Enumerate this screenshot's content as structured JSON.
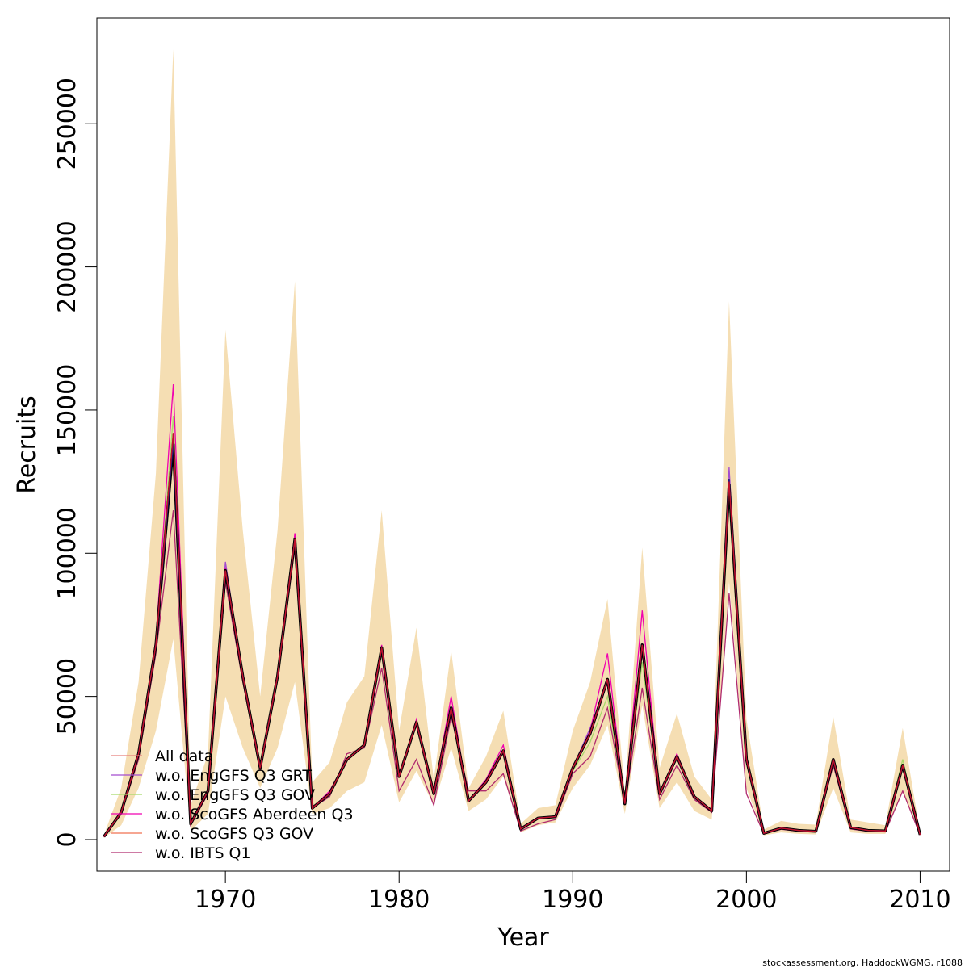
{
  "chart_data": {
    "type": "line",
    "xlabel": "Year",
    "ylabel": "Recruits",
    "xlim": [
      1962.6,
      2011.7
    ],
    "ylim": [
      -11000,
      287000
    ],
    "x_ticks": [
      1970,
      1980,
      1990,
      2000,
      2010
    ],
    "x_tick_labels": [
      "1970",
      "1980",
      "1990",
      "2000",
      "2010"
    ],
    "y_ticks": [
      0,
      50000,
      100000,
      150000,
      200000,
      250000
    ],
    "y_tick_labels": [
      "0",
      "50000",
      "100000",
      "150000",
      "200000",
      "250000"
    ],
    "legend_position": "bottom-left",
    "x": [
      1963,
      1964,
      1965,
      1966,
      1967,
      1968,
      1969,
      1970,
      1971,
      1972,
      1973,
      1974,
      1975,
      1976,
      1977,
      1978,
      1979,
      1980,
      1981,
      1982,
      1983,
      1984,
      1985,
      1986,
      1987,
      1988,
      1989,
      1990,
      1991,
      1992,
      1993,
      1994,
      1995,
      1996,
      1997,
      1998,
      1999,
      2000,
      2001,
      2002,
      2003,
      2004,
      2005,
      2006,
      2007,
      2008,
      2009,
      2010
    ],
    "band": {
      "color": "#f5deb3",
      "lower": [
        600,
        5000,
        18000,
        38000,
        70000,
        3000,
        9000,
        50000,
        32000,
        18000,
        32000,
        55000,
        9000,
        11000,
        17000,
        20000,
        40000,
        13000,
        24000,
        12000,
        32000,
        10000,
        14000,
        22000,
        2500,
        5000,
        6000,
        18000,
        26000,
        40000,
        9000,
        47000,
        11000,
        20000,
        10000,
        7000,
        90000,
        18000,
        1500,
        2500,
        2000,
        1800,
        18000,
        2500,
        2000,
        2000,
        17000,
        1000
      ],
      "upper": [
        1500,
        18000,
        55000,
        128000,
        276000,
        12000,
        30000,
        178000,
        108000,
        50000,
        108000,
        195000,
        20000,
        27000,
        48000,
        57000,
        115000,
        38000,
        74000,
        21000,
        66000,
        18000,
        29000,
        45000,
        5500,
        11000,
        12000,
        38000,
        55000,
        84000,
        17000,
        102000,
        25000,
        44000,
        22000,
        14000,
        188000,
        42000,
        3500,
        6500,
        5500,
        5200,
        43000,
        7000,
        6000,
        5000,
        39000,
        2400
      ]
    },
    "series": [
      {
        "name": "All data",
        "color": "#e8807d",
        "values": [
          1000,
          9500,
          30000,
          68000,
          142000,
          5500,
          17000,
          94000,
          57000,
          25000,
          57000,
          105000,
          11000,
          16000,
          28000,
          33000,
          67000,
          22000,
          41000,
          16000,
          46000,
          13500,
          20000,
          31000,
          3700,
          7500,
          8000,
          25000,
          37000,
          56000,
          12500,
          68000,
          16000,
          29000,
          15000,
          10000,
          126000,
          28000,
          2200,
          4000,
          3200,
          2900,
          28000,
          4200,
          3200,
          3000,
          26000,
          1700
        ]
      },
      {
        "name": "w.o. EngGFS Q3 GRT",
        "color": "#a34ccf",
        "values": [
          1000,
          9500,
          30000,
          68000,
          140000,
          5500,
          17000,
          97000,
          57000,
          25000,
          57000,
          106000,
          11000,
          16000,
          28000,
          33000,
          67000,
          22000,
          41000,
          16000,
          46000,
          13500,
          20000,
          31000,
          3700,
          7500,
          8000,
          25000,
          39000,
          56000,
          12500,
          68000,
          16000,
          29000,
          15000,
          10000,
          130000,
          28000,
          2200,
          4000,
          3200,
          2900,
          28000,
          4200,
          3200,
          3000,
          26000,
          1700
        ]
      },
      {
        "name": "w.o. EngGFS Q3 GOV",
        "color": "#a8d96a",
        "values": [
          1000,
          9500,
          30000,
          68000,
          148000,
          5500,
          17000,
          94000,
          57000,
          25000,
          57000,
          105000,
          11000,
          16000,
          28000,
          33000,
          67000,
          22000,
          41000,
          16000,
          46000,
          13500,
          20000,
          31000,
          3700,
          7500,
          8000,
          24000,
          34000,
          50000,
          12500,
          62000,
          16000,
          29000,
          15000,
          10000,
          122000,
          28000,
          2200,
          4000,
          3200,
          2900,
          27000,
          4200,
          3200,
          3000,
          28000,
          1700
        ]
      },
      {
        "name": "w.o. ScoGFS Aberdeen Q3",
        "color": "#f000b0",
        "values": [
          1000,
          9500,
          31000,
          70000,
          159000,
          5500,
          17000,
          95000,
          58000,
          25000,
          58000,
          107000,
          11000,
          17000,
          28000,
          33000,
          68000,
          22000,
          42000,
          16000,
          50000,
          13500,
          21000,
          33000,
          3700,
          7500,
          8000,
          25000,
          38000,
          65000,
          12500,
          80000,
          16000,
          30000,
          15000,
          10000,
          126000,
          28000,
          2200,
          4000,
          3200,
          2900,
          28000,
          4200,
          3200,
          3000,
          26000,
          1700
        ]
      },
      {
        "name": "w.o. ScoGFS Q3 GOV",
        "color": "#f07050",
        "values": [
          1000,
          9500,
          30000,
          68000,
          142000,
          5500,
          17000,
          94000,
          57000,
          25000,
          57000,
          105000,
          11000,
          16000,
          28000,
          33000,
          67000,
          22000,
          41000,
          16000,
          46000,
          13500,
          20000,
          31000,
          3700,
          7500,
          8000,
          25000,
          37000,
          56000,
          12500,
          68000,
          16000,
          29000,
          15000,
          10000,
          125000,
          28000,
          2200,
          4000,
          3200,
          2900,
          28000,
          4200,
          3200,
          3000,
          26000,
          1700
        ]
      },
      {
        "name": "w.o. IBTS Q1",
        "color": "#b02a6e",
        "values": [
          1000,
          9000,
          28000,
          65000,
          115000,
          5000,
          16000,
          90000,
          55000,
          24000,
          56000,
          102000,
          11000,
          15000,
          30000,
          32000,
          60000,
          17000,
          28000,
          12000,
          43000,
          17000,
          17000,
          23000,
          3000,
          5500,
          7000,
          23000,
          29000,
          46000,
          12000,
          53000,
          14000,
          26000,
          14000,
          9500,
          86000,
          16000,
          2000,
          3600,
          2900,
          2700,
          26000,
          3700,
          2900,
          2700,
          17000,
          1600
        ]
      }
    ],
    "highlight_line": {
      "color": "#000000",
      "values": [
        1000,
        9500,
        30000,
        68000,
        138000,
        5500,
        17000,
        94000,
        57000,
        25000,
        57000,
        105000,
        11000,
        16000,
        28000,
        33000,
        67000,
        22000,
        41000,
        16000,
        46000,
        13500,
        20000,
        31000,
        3700,
        7500,
        8000,
        25000,
        37000,
        56000,
        12500,
        68000,
        16000,
        29000,
        15000,
        10000,
        124000,
        28000,
        2200,
        4000,
        3200,
        2900,
        28000,
        4200,
        3200,
        3000,
        26000,
        1700
      ]
    },
    "highlight_line_2": {
      "color": "#1a1a80",
      "values": [
        1000,
        9500,
        30000,
        68000,
        139000,
        5500,
        17000,
        94000,
        57000,
        25000,
        57000,
        105000,
        11000,
        16000,
        28000,
        33000,
        67000,
        22000,
        41000,
        16000,
        46000,
        13500,
        20000,
        31000,
        3700,
        7500,
        8000,
        25000,
        37000,
        56000,
        12500,
        68000,
        16000,
        29000,
        15000,
        10000,
        126000,
        28000,
        2200,
        4000,
        3200,
        2900,
        28000,
        4200,
        3200,
        3000,
        26000,
        1700
      ]
    },
    "attribution": "stockassessment.org, HaddockWGMG, r1088"
  }
}
